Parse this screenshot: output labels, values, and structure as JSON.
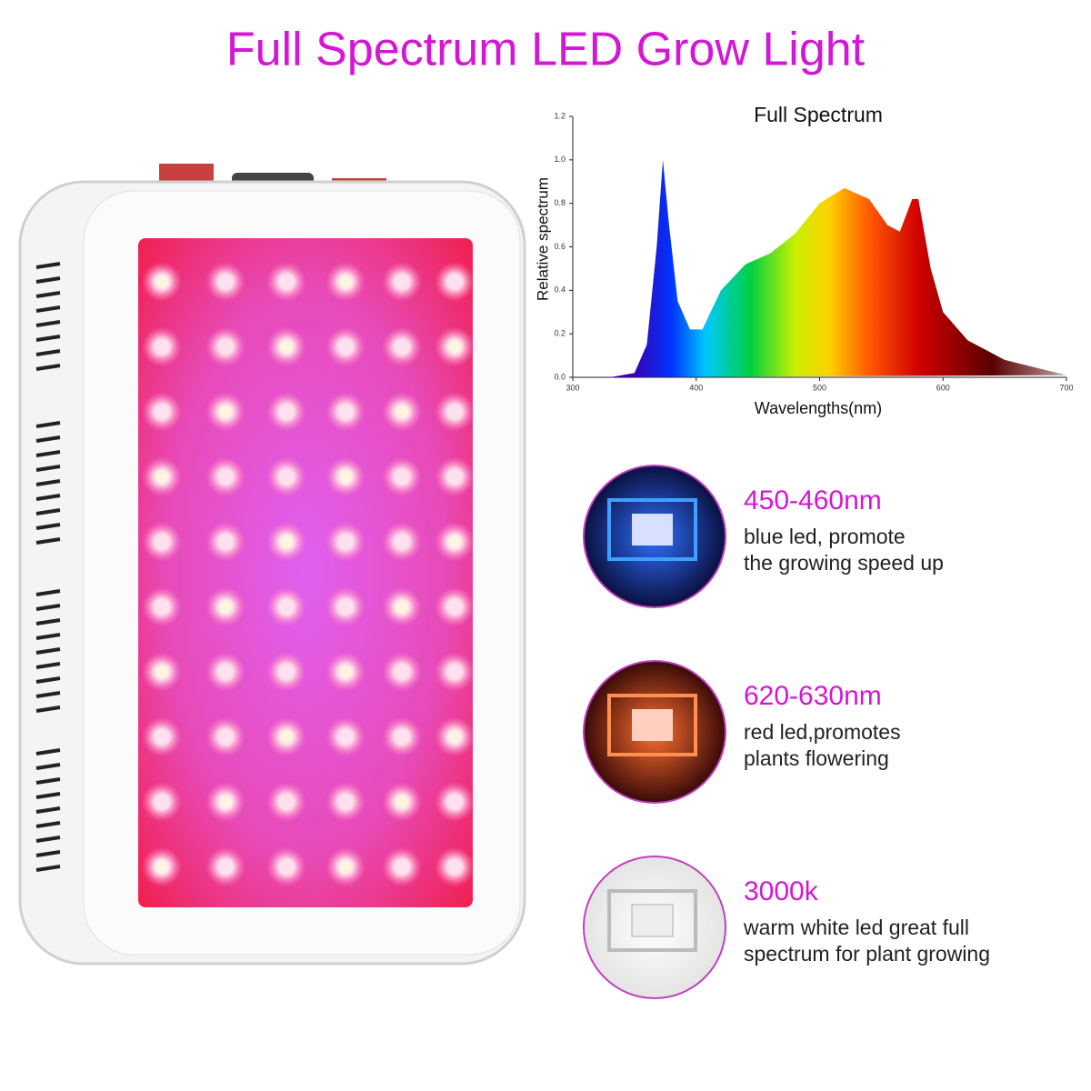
{
  "header": {
    "title": "Full Spectrum LED Grow Light"
  },
  "chart_data": {
    "type": "area",
    "title": "Full Spectrum",
    "x_label": "Wavelengths(nm)",
    "y_label": "Relative spectrum",
    "x": [
      330,
      350,
      360,
      368,
      373,
      378,
      385,
      395,
      405,
      420,
      440,
      460,
      480,
      500,
      520,
      540,
      555,
      565,
      575,
      580,
      590,
      600,
      620,
      650,
      700
    ],
    "values": [
      0,
      0.02,
      0.15,
      0.6,
      1.0,
      0.7,
      0.35,
      0.22,
      0.22,
      0.4,
      0.52,
      0.57,
      0.66,
      0.8,
      0.87,
      0.82,
      0.7,
      0.67,
      0.82,
      0.82,
      0.5,
      0.3,
      0.17,
      0.08,
      0.01
    ],
    "xlim": [
      300,
      700
    ],
    "xticks": [
      300,
      400,
      500,
      600,
      700
    ],
    "ylim": [
      0,
      1.2
    ],
    "yticks": [
      {
        "value": 0,
        "label": "0.0"
      },
      0.2,
      0.4,
      0.6,
      0.8,
      {
        "value": 1,
        "label": "1.0"
      },
      1.2
    ]
  },
  "features": [
    {
      "heading": "450-460nm",
      "lines": [
        "blue led, promote",
        "the growing speed up"
      ]
    },
    {
      "heading": "620-630nm",
      "lines": [
        "red led,promotes",
        "plants flowering"
      ]
    },
    {
      "heading": "3000k",
      "lines": [
        "warm white led great full",
        "spectrum for plant growing"
      ]
    }
  ]
}
